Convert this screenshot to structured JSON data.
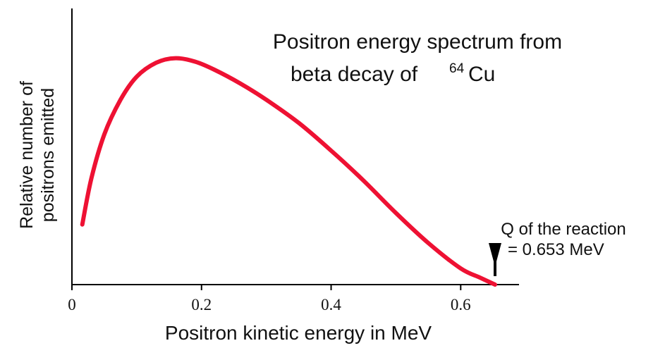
{
  "chart_data": {
    "type": "line",
    "title_line1": "Positron energy spectrum from",
    "title_line2_prefix": "beta decay of",
    "title_isotope_mass": "64",
    "title_isotope_symbol": "Cu",
    "xlabel": "Positron kinetic energy in MeV",
    "ylabel_line1": "Relative number of",
    "ylabel_line2": "positrons emitted",
    "xlim": [
      0,
      0.69
    ],
    "ylim": [
      0,
      1.0
    ],
    "x_ticks": [
      0,
      0.2,
      0.4,
      0.6
    ],
    "x_tick_labels": [
      "0",
      "0.2",
      "0.4",
      "0.6"
    ],
    "grid": false,
    "series": [
      {
        "color": "#ee1133",
        "x": [
          0.016,
          0.03,
          0.05,
          0.075,
          0.1,
          0.13,
          0.16,
          0.19,
          0.22,
          0.26,
          0.3,
          0.35,
          0.4,
          0.45,
          0.5,
          0.55,
          0.6,
          0.63,
          0.653
        ],
        "y": [
          0.26,
          0.46,
          0.65,
          0.8,
          0.9,
          0.96,
          0.98,
          0.965,
          0.93,
          0.87,
          0.8,
          0.7,
          0.58,
          0.45,
          0.31,
          0.18,
          0.07,
          0.03,
          0.0
        ]
      }
    ],
    "annotation": {
      "line1": "Q of the reaction",
      "line2": "= 0.653 MeV",
      "x": 0.653,
      "arrow_icon": "down-arrow-icon"
    },
    "colors": {
      "curve": "#ee1133",
      "axes": "#000000",
      "text": "#111111"
    }
  }
}
